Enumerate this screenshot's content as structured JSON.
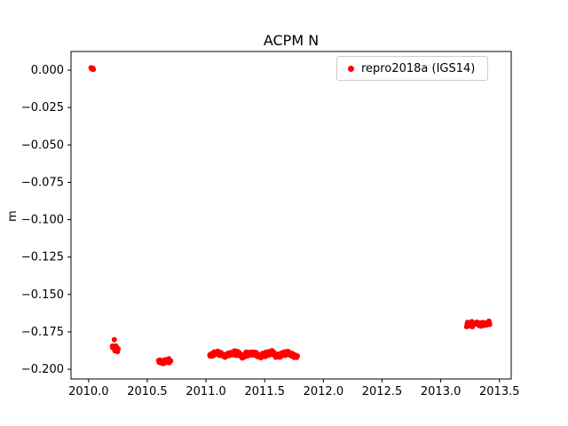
{
  "figure": {
    "background": "#ffffff",
    "axis_color": "#000000",
    "legend_border_color": "#cccccc"
  },
  "chart_data": {
    "type": "scatter",
    "title": "ACPM N",
    "xlabel": "",
    "ylabel": "m",
    "grid": false,
    "legend": {
      "position": "upper right",
      "entries": [
        {
          "label": "repro2018a (IGS14)",
          "color": "#ff0000"
        }
      ]
    },
    "xlim": [
      2009.85,
      2013.6
    ],
    "ylim": [
      -0.2065,
      0.0125
    ],
    "xticks": {
      "values": [
        2010.0,
        2010.5,
        2011.0,
        2011.5,
        2012.0,
        2012.5,
        2013.0,
        2013.5
      ],
      "labels": [
        "2010.0",
        "2010.5",
        "2011.0",
        "2011.5",
        "2012.0",
        "2012.5",
        "2013.0",
        "2013.5"
      ]
    },
    "yticks": {
      "values": [
        0.0,
        -0.025,
        -0.05,
        -0.075,
        -0.1,
        -0.125,
        -0.15,
        -0.175,
        -0.2
      ],
      "labels": [
        "0.000",
        "−0.025",
        "−0.050",
        "−0.075",
        "−0.100",
        "−0.125",
        "−0.150",
        "−0.175",
        "−0.200"
      ]
    },
    "series": [
      {
        "name": "repro2018a (IGS14)",
        "color": "#ff0000",
        "marker": "circle",
        "marker_size": 3,
        "clusters": [
          {
            "x0": 2010.02,
            "x1": 2010.045,
            "n": 5,
            "y0": -0.001,
            "y1": 0.0035
          },
          {
            "x0": 2010.215,
            "x1": 2010.222,
            "n": 1,
            "y0": -0.1805,
            "y1": -0.1795
          },
          {
            "x0": 2010.2,
            "x1": 2010.255,
            "n": 11,
            "y0": -0.189,
            "y1": -0.1835
          },
          {
            "x0": 2010.595,
            "x1": 2010.7,
            "n": 28,
            "y0": -0.1965,
            "y1": -0.1925
          },
          {
            "x0": 2011.03,
            "x1": 2011.78,
            "n": 270,
            "y0": -0.1922,
            "y1": -0.1878,
            "wave": {
              "amp": 0.001,
              "omega": 42,
              "phase": 0.5
            }
          },
          {
            "x0": 2013.22,
            "x1": 2013.42,
            "n": 48,
            "y0": -0.1725,
            "y1": -0.167
          }
        ]
      }
    ]
  }
}
